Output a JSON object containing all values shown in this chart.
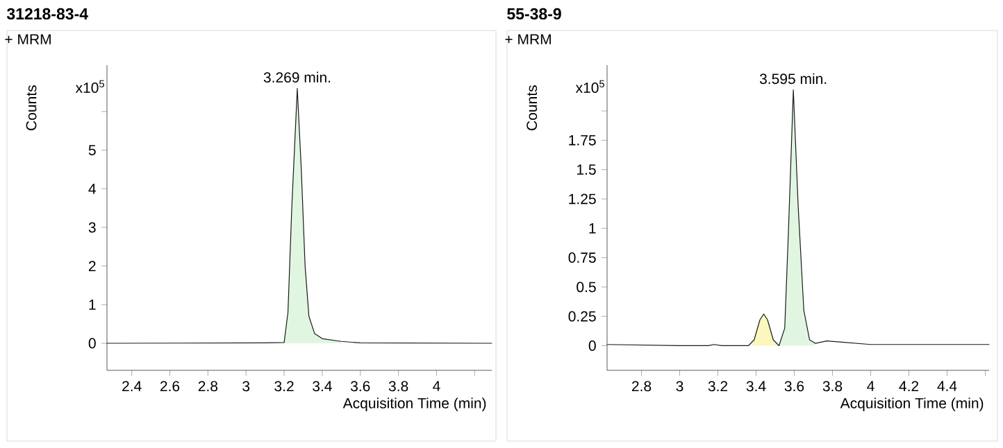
{
  "chart_data": [
    {
      "type": "line",
      "title": "31218-83-4",
      "xlabel": "Acquisition Time (min)",
      "ylabel": "Counts",
      "annotations": [
        "+ MRM",
        "x10$^{5}$",
        {
          "text": "3.269 min.",
          "x": 3.269,
          "y": 6.6
        }
      ],
      "xlim": [
        2.27,
        4.29
      ],
      "ylim": [
        -0.7,
        7.2
      ],
      "xticks": [
        2.4,
        2.6,
        2.8,
        3,
        3.2,
        3.4,
        3.6,
        3.8,
        4,
        {
          "value": 4.2,
          "label": null
        }
      ],
      "yticks": [
        0,
        1,
        2,
        3,
        4,
        5,
        {
          "value": 6,
          "label": null
        }
      ],
      "series": [
        {
          "type": "area",
          "color": "#e0f6e0",
          "x": [
            3.2,
            3.22,
            3.24,
            3.269,
            3.29,
            3.31,
            3.33,
            3.36,
            3.4,
            3.5
          ],
          "values": [
            0.02,
            0.8,
            3.5,
            6.6,
            4.5,
            2.0,
            0.7,
            0.25,
            0.12,
            0.05
          ]
        },
        {
          "color": "#1a1a1a",
          "x": [
            2.27,
            3.1,
            3.2,
            3.22,
            3.24,
            3.269,
            3.29,
            3.31,
            3.33,
            3.36,
            3.4,
            3.5,
            3.6,
            4.29
          ],
          "values": [
            0,
            0.01,
            0.02,
            0.8,
            3.5,
            6.6,
            4.5,
            2.0,
            0.7,
            0.25,
            0.12,
            0.05,
            0.01,
            0
          ]
        }
      ]
    },
    {
      "type": "line",
      "title": "55-38-9",
      "xlabel": "Acquisition Time (min)",
      "ylabel": "Counts",
      "annotations": [
        "+ MRM",
        "x10$^{5}$",
        {
          "text": "3.595 min.",
          "x": 3.595,
          "y": 2.18
        }
      ],
      "xlim": [
        2.62,
        4.62
      ],
      "ylim": [
        -0.21,
        2.39
      ],
      "xticks": [
        2.8,
        3,
        3.2,
        3.4,
        3.6,
        3.8,
        4,
        4.2,
        4.4,
        {
          "value": 4.6,
          "label": null
        }
      ],
      "yticks": [
        0,
        0.25,
        0.5,
        0.75,
        1,
        1.25,
        1.5,
        1.75,
        {
          "value": 2,
          "label": null
        }
      ],
      "series": [
        {
          "type": "area",
          "color": "#fbf7bd",
          "x": [
            3.38,
            3.39,
            3.42,
            3.44,
            3.46,
            3.49,
            3.52
          ],
          "values": [
            0.0,
            0.05,
            0.22,
            0.27,
            0.22,
            0.05,
            0.0
          ]
        },
        {
          "type": "area",
          "color": "#e0f6e0",
          "x": [
            3.52,
            3.55,
            3.57,
            3.595,
            3.62,
            3.65,
            3.68,
            3.71
          ],
          "values": [
            0.0,
            0.15,
            1.0,
            2.18,
            1.2,
            0.3,
            0.05,
            0.02
          ]
        },
        {
          "color": "#1a1a1a",
          "x": [
            2.62,
            3.0,
            3.15,
            3.18,
            3.22,
            3.36,
            3.39,
            3.42,
            3.44,
            3.46,
            3.49,
            3.52,
            3.55,
            3.57,
            3.595,
            3.62,
            3.65,
            3.68,
            3.71,
            3.77,
            3.85,
            4.0,
            4.3,
            4.62
          ],
          "values": [
            0.01,
            0.0,
            0.0,
            0.01,
            0.0,
            0.0,
            0.05,
            0.22,
            0.27,
            0.22,
            0.05,
            0.0,
            0.15,
            1.0,
            2.18,
            1.2,
            0.3,
            0.05,
            0.02,
            0.04,
            0.03,
            0.01,
            0.01,
            0.01
          ]
        }
      ]
    }
  ]
}
